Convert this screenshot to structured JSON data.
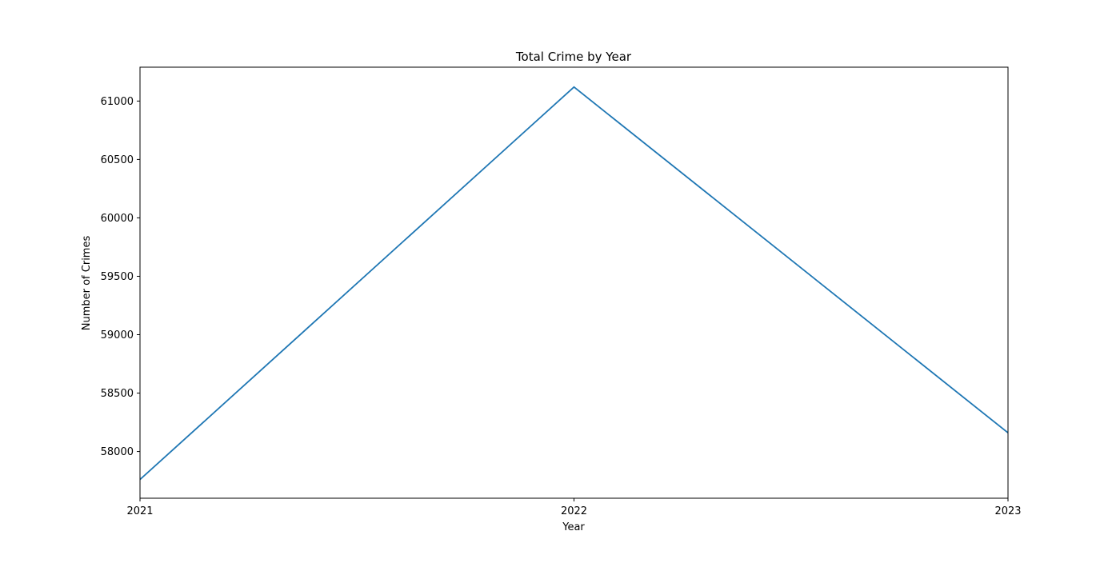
{
  "chart_data": {
    "type": "line",
    "title": "Total Crime by Year",
    "xlabel": "Year",
    "ylabel": "Number of Crimes",
    "x": [
      2021,
      2022,
      2023
    ],
    "x_tick_labels": [
      "2021",
      "2022",
      "2023"
    ],
    "xlim": [
      2021,
      2023
    ],
    "y_ticks": [
      58000,
      58500,
      59000,
      59500,
      60000,
      60500,
      61000
    ],
    "y_tick_labels": [
      "58000",
      "58500",
      "59000",
      "59500",
      "60000",
      "60500",
      "61000"
    ],
    "ylim": [
      57600,
      61290
    ],
    "series": [
      {
        "values": [
          57760,
          61120,
          58160
        ],
        "color": "#1f77b4"
      }
    ],
    "grid": false,
    "legend": "none"
  }
}
